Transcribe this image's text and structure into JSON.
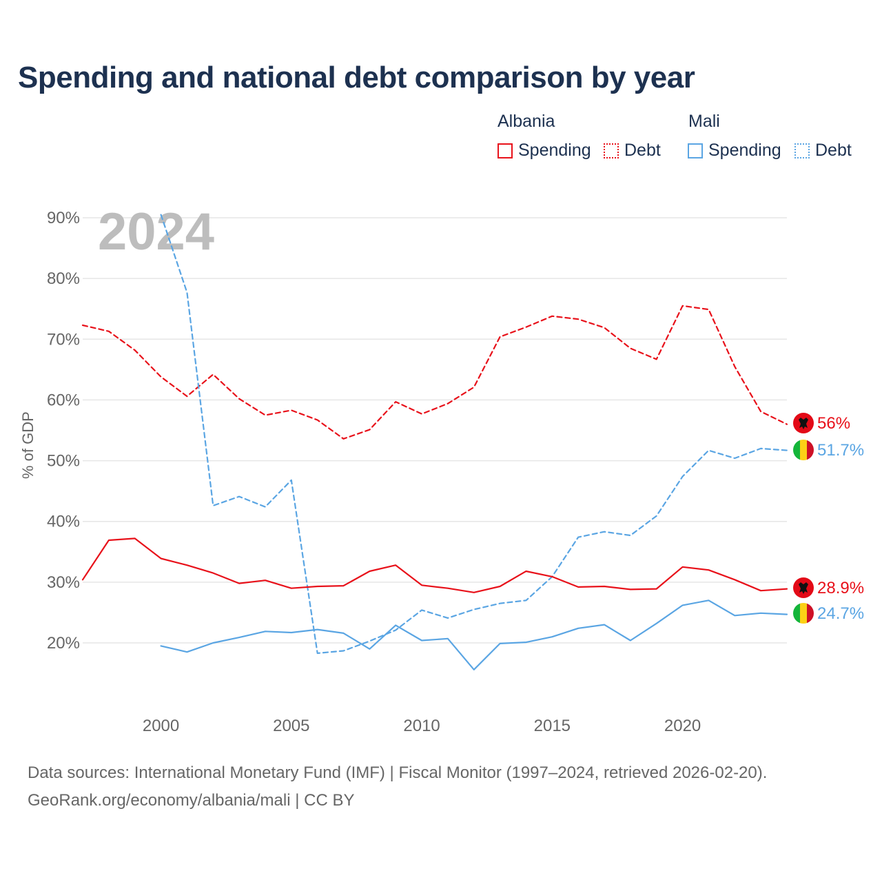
{
  "chart_data": {
    "type": "line",
    "title": "Spending and national debt comparison by year",
    "ylabel": "% of GDP",
    "xlabel": "",
    "xlim": [
      1997,
      2024
    ],
    "ylim": [
      10,
      92
    ],
    "yticks": [
      20,
      30,
      40,
      50,
      60,
      70,
      80,
      90
    ],
    "ytick_labels": [
      "20%",
      "30%",
      "40%",
      "50%",
      "60%",
      "70%",
      "80%",
      "90%"
    ],
    "xticks": [
      2000,
      2005,
      2010,
      2015,
      2020
    ],
    "xtick_labels": [
      "2000",
      "2005",
      "2010",
      "2015",
      "2020"
    ],
    "year_watermark": "2024",
    "legend": {
      "groups": [
        {
          "country": "Albania",
          "items": [
            {
              "label": "Spending",
              "style": "solid"
            },
            {
              "label": "Debt",
              "style": "dotted"
            }
          ],
          "color": "#e8111a"
        },
        {
          "country": "Mali",
          "items": [
            {
              "label": "Spending",
              "style": "solid"
            },
            {
              "label": "Debt",
              "style": "dotted"
            }
          ],
          "color": "#5aa5e3"
        }
      ]
    },
    "series": [
      {
        "name": "Albania Debt",
        "country": "Albania",
        "kind": "debt",
        "color": "#e8111a",
        "dash": "dashed",
        "x": [
          1997,
          1998,
          1999,
          2000,
          2001,
          2002,
          2003,
          2004,
          2005,
          2006,
          2007,
          2008,
          2009,
          2010,
          2011,
          2012,
          2013,
          2014,
          2015,
          2016,
          2017,
          2018,
          2019,
          2020,
          2021,
          2022,
          2023,
          2024
        ],
        "values": [
          72.3,
          71.3,
          68.2,
          63.8,
          60.6,
          64.2,
          60.2,
          57.5,
          58.3,
          56.7,
          53.6,
          55.1,
          59.7,
          57.7,
          59.4,
          62.1,
          70.4,
          72.0,
          73.8,
          73.3,
          71.9,
          68.5,
          66.7,
          75.5,
          74.9,
          65.5,
          58.1,
          56.0
        ],
        "end_label": "56%"
      },
      {
        "name": "Mali Debt",
        "country": "Mali",
        "kind": "debt",
        "color": "#5aa5e3",
        "dash": "dashed",
        "x": [
          2000,
          2001,
          2002,
          2003,
          2004,
          2005,
          2006,
          2007,
          2008,
          2009,
          2010,
          2011,
          2012,
          2013,
          2014,
          2015,
          2016,
          2017,
          2018,
          2019,
          2020,
          2021,
          2022,
          2023,
          2024
        ],
        "values": [
          90.5,
          77.7,
          42.6,
          44.1,
          42.4,
          46.8,
          18.3,
          18.7,
          20.3,
          22.1,
          25.4,
          24.1,
          25.5,
          26.5,
          27.0,
          30.9,
          37.4,
          38.3,
          37.7,
          40.9,
          47.4,
          51.7,
          50.4,
          52.0,
          51.7
        ],
        "end_label": "51.7%"
      },
      {
        "name": "Albania Spending",
        "country": "Albania",
        "kind": "spending",
        "color": "#e8111a",
        "dash": "solid",
        "x": [
          1997,
          1998,
          1999,
          2000,
          2001,
          2002,
          2003,
          2004,
          2005,
          2006,
          2007,
          2008,
          2009,
          2010,
          2011,
          2012,
          2013,
          2014,
          2015,
          2016,
          2017,
          2018,
          2019,
          2020,
          2021,
          2022,
          2023,
          2024
        ],
        "values": [
          30.4,
          36.9,
          37.2,
          33.9,
          32.8,
          31.5,
          29.8,
          30.3,
          29.0,
          29.3,
          29.4,
          31.8,
          32.8,
          29.5,
          29.0,
          28.3,
          29.3,
          31.8,
          30.9,
          29.2,
          29.3,
          28.8,
          28.9,
          32.5,
          32.0,
          30.4,
          28.6,
          28.9
        ],
        "end_label": "28.9%"
      },
      {
        "name": "Mali Spending",
        "country": "Mali",
        "kind": "spending",
        "color": "#5aa5e3",
        "dash": "solid",
        "x": [
          2000,
          2001,
          2002,
          2003,
          2004,
          2005,
          2006,
          2007,
          2008,
          2009,
          2010,
          2011,
          2012,
          2013,
          2014,
          2015,
          2016,
          2017,
          2018,
          2019,
          2020,
          2021,
          2022,
          2023,
          2024
        ],
        "values": [
          19.5,
          18.5,
          20.0,
          20.9,
          21.9,
          21.7,
          22.2,
          21.6,
          19.0,
          22.9,
          20.4,
          20.7,
          15.6,
          19.9,
          20.1,
          21.0,
          22.4,
          23.0,
          20.4,
          23.2,
          26.2,
          27.0,
          24.5,
          24.9,
          24.7
        ],
        "end_label": "24.7%"
      }
    ]
  },
  "colors": {
    "albania": "#e8111a",
    "mali": "#5aa5e3",
    "title": "#1d3150",
    "muted": "#666666",
    "grid": "#e6e6e6"
  },
  "footer": {
    "line1": "Data sources: International Monetary Fund (IMF) | Fiscal Monitor (1997–2024, retrieved 2026-02-20).",
    "line2": "GeoRank.org/economy/albania/mali | CC BY"
  }
}
